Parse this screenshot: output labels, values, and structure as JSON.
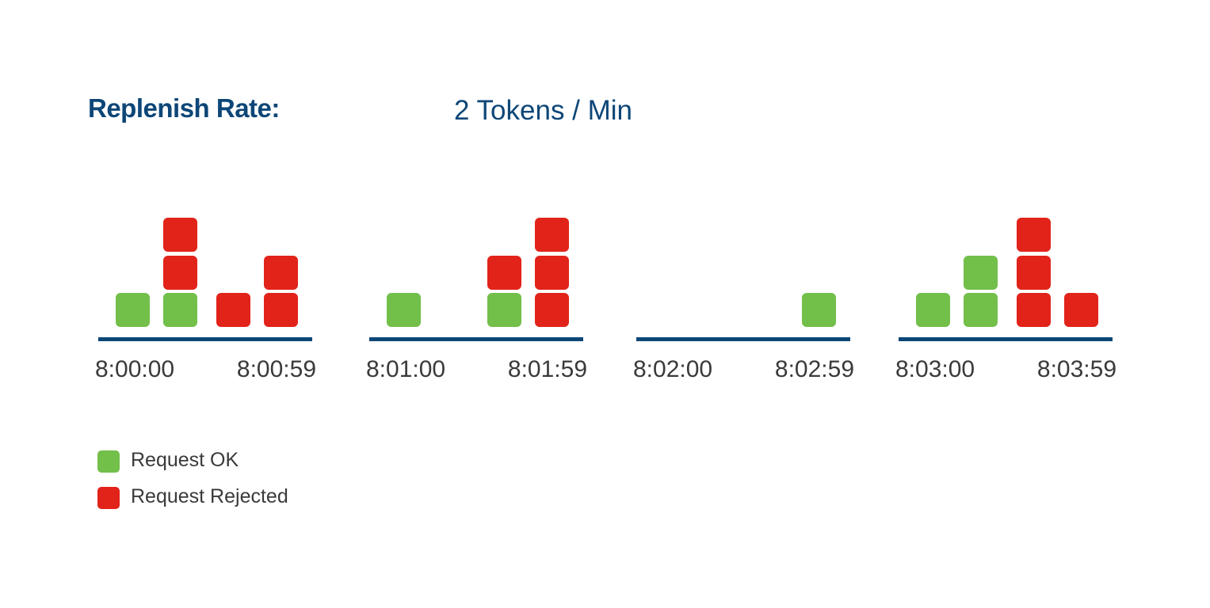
{
  "header": {
    "title": "Replenish Rate:",
    "rate": "2 Tokens / Min"
  },
  "colors": {
    "navy": "#0d4677",
    "ok": "#72bf4a",
    "rejected": "#e2231a",
    "text": "#3a3a3a"
  },
  "chart_data": {
    "type": "timeline",
    "windows": [
      {
        "start_label": "8:00:00",
        "end_label": "8:00:59",
        "columns": [
          {
            "stack": [
              "ok"
            ]
          },
          {
            "stack": [
              "ok",
              "rejected",
              "rejected"
            ]
          },
          {
            "stack": [
              "rejected"
            ]
          },
          {
            "stack": [
              "rejected",
              "rejected"
            ]
          }
        ]
      },
      {
        "start_label": "8:01:00",
        "end_label": "8:01:59",
        "columns": [
          {
            "stack": [
              "ok"
            ]
          },
          {
            "stack": []
          },
          {
            "stack": [
              "ok",
              "rejected"
            ]
          },
          {
            "stack": [
              "rejected",
              "rejected",
              "rejected"
            ]
          }
        ]
      },
      {
        "start_label": "8:02:00",
        "end_label": "8:02:59",
        "columns": [
          {
            "stack": []
          },
          {
            "stack": []
          },
          {
            "stack": []
          },
          {
            "stack": [
              "ok"
            ]
          }
        ]
      },
      {
        "start_label": "8:03:00",
        "end_label": "8:03:59",
        "columns": [
          {
            "stack": [
              "ok"
            ]
          },
          {
            "stack": [
              "ok",
              "ok"
            ]
          },
          {
            "stack": [
              "rejected",
              "rejected",
              "rejected"
            ]
          },
          {
            "stack": [
              "rejected"
            ]
          }
        ]
      }
    ]
  },
  "legend": {
    "items": [
      {
        "key": "ok",
        "label": "Request OK"
      },
      {
        "key": "rejected",
        "label": "Request Rejected"
      }
    ]
  }
}
